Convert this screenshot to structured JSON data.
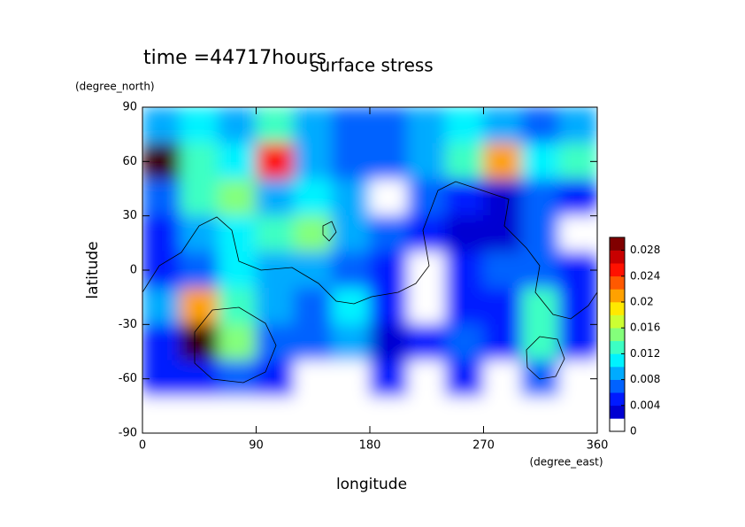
{
  "chart_data": {
    "type": "contour",
    "title": "surface stress",
    "annotation": "time =44717hours",
    "x_label": "longitude",
    "x_unit": "(degree_east)",
    "y_label": "latitude",
    "y_unit": "(degree_north)",
    "xlim": [
      0,
      360
    ],
    "ylim": [
      -90,
      90
    ],
    "xticks": [
      0,
      90,
      180,
      270,
      360
    ],
    "yticks": [
      90,
      60,
      30,
      0,
      -30,
      -60,
      -90
    ],
    "x": [
      15,
      45,
      75,
      105,
      135,
      165,
      195,
      225,
      255,
      285,
      315,
      345
    ],
    "y": [
      80,
      60,
      40,
      20,
      0,
      -20,
      -40,
      -60,
      -80
    ],
    "z": [
      [
        0.008,
        0.01,
        0.008,
        0.012,
        0.008,
        0.006,
        0.006,
        0.008,
        0.01,
        0.008,
        0.006,
        0.008
      ],
      [
        0.03,
        0.012,
        0.01,
        0.025,
        0.008,
        0.006,
        0.006,
        0.008,
        0.012,
        0.02,
        0.01,
        0.012
      ],
      [
        0.006,
        0.012,
        0.014,
        0.008,
        0.01,
        0.008,
        0.001,
        0.006,
        0.004,
        0.003,
        0.006,
        0.004
      ],
      [
        0.004,
        0.008,
        0.01,
        0.012,
        0.014,
        0.008,
        0.006,
        0.004,
        0.003,
        0.003,
        0.006,
        0.001
      ],
      [
        0.004,
        0.006,
        0.01,
        0.008,
        0.008,
        0.006,
        0.005,
        0.001,
        0.004,
        0.006,
        0.006,
        0.004
      ],
      [
        0.008,
        0.02,
        0.012,
        0.008,
        0.006,
        0.01,
        0.004,
        0.001,
        0.004,
        0.004,
        0.012,
        0.004
      ],
      [
        0.004,
        0.03,
        0.014,
        0.006,
        0.006,
        0.008,
        0.003,
        0.004,
        0.006,
        0.004,
        0.012,
        0.004
      ],
      [
        0.004,
        0.004,
        0.006,
        0.004,
        0.001,
        0.001,
        0.004,
        0.001,
        0.004,
        0.001,
        0.006,
        0.001
      ],
      [
        0,
        0,
        0,
        0,
        0,
        0,
        0,
        0,
        0,
        0,
        0,
        0
      ]
    ],
    "colorbar": {
      "zlim": [
        0,
        0.03
      ],
      "ticks": [
        0,
        0.004,
        0.008,
        0.012,
        0.016,
        0.02,
        0.024,
        0.028
      ]
    }
  }
}
